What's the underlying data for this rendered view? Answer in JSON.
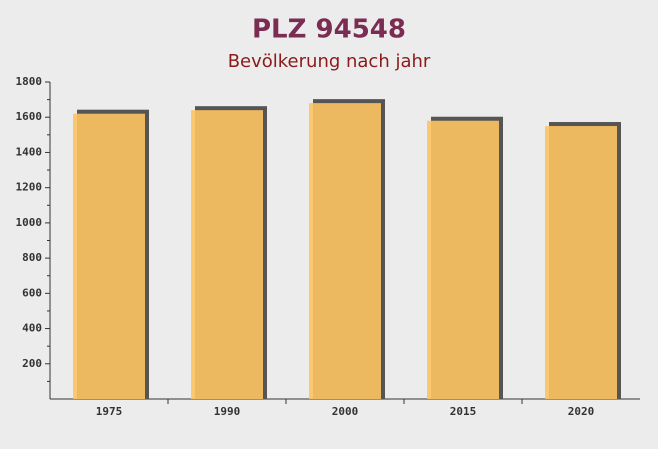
{
  "chart_data": {
    "type": "bar",
    "title": "PLZ 94548",
    "subtitle": "Bevölkerung nach jahr",
    "categories": [
      "1975",
      "1990",
      "2000",
      "2015",
      "2020"
    ],
    "values": [
      1620,
      1640,
      1680,
      1580,
      1550
    ],
    "color": "#fec462",
    "ylim": [
      0,
      1800
    ],
    "yticks": [
      200,
      400,
      600,
      800,
      1000,
      1200,
      1400,
      1600,
      1800
    ],
    "grid": false
  }
}
